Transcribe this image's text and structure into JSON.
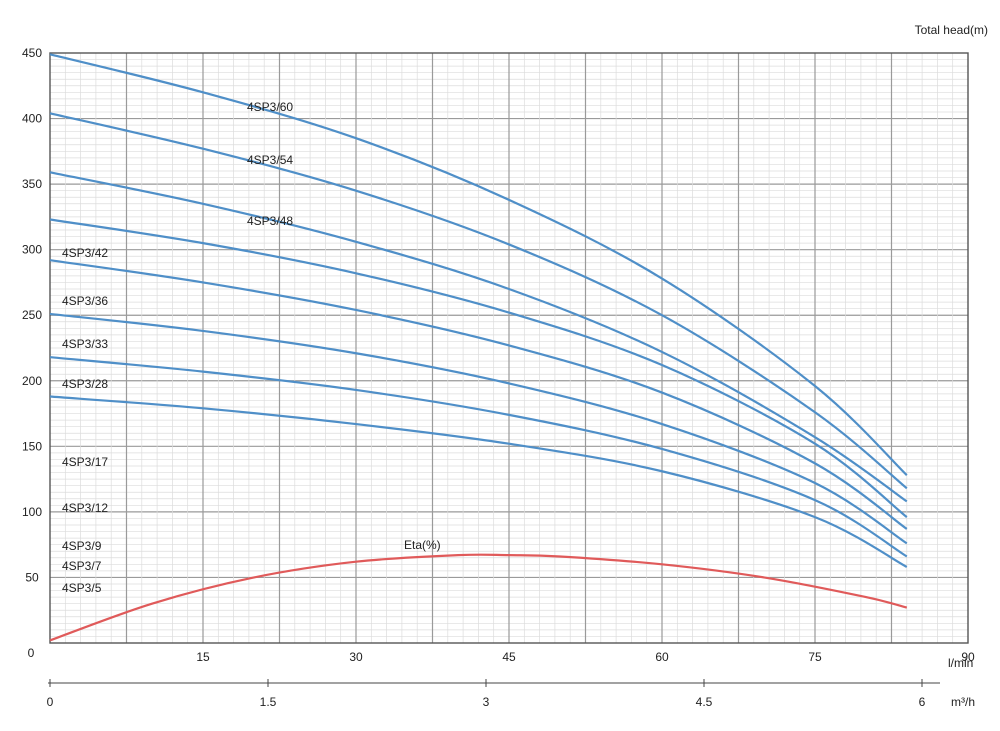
{
  "chart_data": {
    "type": "line",
    "yaxis_label": "Total head(m)",
    "x_unit_top": "l/min",
    "x_unit_bottom": "m³/h",
    "origin_label": "0",
    "xlim": [
      0,
      90
    ],
    "ylim": [
      0,
      450
    ],
    "y_ticks": [
      50,
      100,
      150,
      200,
      250,
      300,
      350,
      400,
      450
    ],
    "x_ticks_top": [
      15,
      30,
      45,
      60,
      75,
      90
    ],
    "x_ticks_bottom": [
      {
        "label": "0",
        "value": 0
      },
      {
        "label": "1.5",
        "value": 1.5
      },
      {
        "label": "3",
        "value": 3
      },
      {
        "label": "4.5",
        "value": 4.5
      },
      {
        "label": "6",
        "value": 6
      }
    ],
    "grid": true,
    "series": [
      {
        "name": "4SP3/60",
        "color": "#4f8fc8",
        "x": [
          0,
          15,
          30,
          45,
          60,
          75,
          84
        ],
        "y": [
          449,
          420,
          385,
          338,
          278,
          196,
          128
        ]
      },
      {
        "name": "4SP3/54",
        "color": "#4f8fc8",
        "x": [
          0,
          15,
          30,
          45,
          60,
          75,
          84
        ],
        "y": [
          404,
          377,
          345,
          304,
          250,
          176,
          118
        ]
      },
      {
        "name": "4SP3/48",
        "color": "#4f8fc8",
        "x": [
          0,
          15,
          30,
          45,
          60,
          75,
          84
        ],
        "y": [
          359,
          335,
          306,
          270,
          222,
          157,
          108
        ]
      },
      {
        "name": "4SP3/42",
        "color": "#4f8fc8",
        "x": [
          0,
          15,
          30,
          45,
          60,
          75,
          84
        ],
        "y": [
          323,
          305,
          282,
          252,
          212,
          152,
          96
        ]
      },
      {
        "name": "4SP3/36",
        "color": "#4f8fc8",
        "x": [
          0,
          15,
          30,
          45,
          60,
          75,
          84
        ],
        "y": [
          292,
          275,
          254,
          227,
          191,
          137,
          87
        ]
      },
      {
        "name": "4SP3/33",
        "color": "#4f8fc8",
        "x": [
          0,
          15,
          30,
          45,
          60,
          75,
          84
        ],
        "y": [
          251,
          238,
          221,
          198,
          167,
          122,
          76
        ]
      },
      {
        "name": "4SP3/28",
        "color": "#4f8fc8",
        "x": [
          0,
          15,
          30,
          45,
          60,
          75,
          84
        ],
        "y": [
          218,
          207,
          193,
          174,
          148,
          109,
          66
        ]
      },
      {
        "name": "4SP3/17",
        "color": "#4f8fc8",
        "x": [
          0,
          15,
          30,
          45,
          60,
          75,
          84
        ],
        "y": [
          188,
          179,
          167,
          152,
          131,
          96,
          58
        ]
      }
    ],
    "efficiency": {
      "name": "Eta(%)",
      "color": "#e05a5a",
      "x": [
        0,
        10,
        20,
        30,
        40,
        45,
        50,
        60,
        70,
        80,
        84
      ],
      "y": [
        2,
        30,
        50,
        62,
        67,
        67,
        66,
        60,
        50,
        35,
        27
      ]
    },
    "series_labels": [
      {
        "text": "4SP3/60",
        "series": "4SP3/60"
      },
      {
        "text": "4SP3/54",
        "series": "4SP3/54"
      },
      {
        "text": "4SP3/48",
        "series": "4SP3/48"
      },
      {
        "text": "4SP3/42",
        "series": "4SP3/42"
      },
      {
        "text": "4SP3/36",
        "series": "4SP3/36"
      },
      {
        "text": "4SP3/33",
        "series": "4SP3/33"
      },
      {
        "text": "4SP3/28",
        "series": "4SP3/28"
      },
      {
        "text": "4SP3/17",
        "series": null
      },
      {
        "text": "4SP3/12",
        "series": null
      },
      {
        "text": "4SP3/9",
        "series": null
      },
      {
        "text": "4SP3/7",
        "series": null
      },
      {
        "text": "4SP3/5",
        "series": null
      },
      {
        "text": "Eta(%)",
        "series": "Eta(%)"
      }
    ]
  }
}
